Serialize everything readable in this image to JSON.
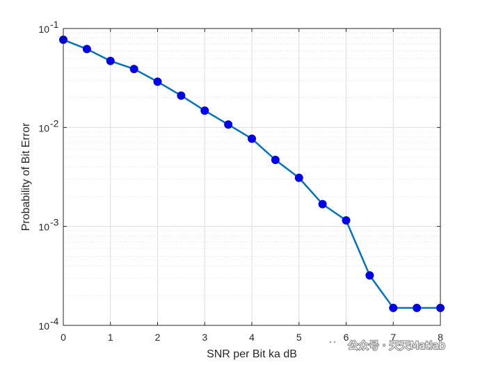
{
  "chart_data": {
    "type": "line",
    "xlabel": "SNR per Bit ka dB",
    "ylabel": "Probability of Bit Error",
    "xlim": [
      0,
      8
    ],
    "ylim": [
      0.0001,
      0.1
    ],
    "yscale": "log",
    "grid": true,
    "x_ticks": [
      "0",
      "1",
      "2",
      "3",
      "4",
      "5",
      "6",
      "7",
      "8"
    ],
    "y_ticks": [
      {
        "base": "10",
        "exp": "-4"
      },
      {
        "base": "10",
        "exp": "-3"
      },
      {
        "base": "10",
        "exp": "-2"
      },
      {
        "base": "10",
        "exp": "-1"
      }
    ],
    "series": [
      {
        "color": "#0072BD",
        "marker_color": "#0000E6",
        "x": [
          0,
          0.5,
          1,
          1.5,
          2,
          2.5,
          3,
          3.5,
          4,
          4.5,
          5,
          5.5,
          6,
          6.5,
          7,
          7.5,
          8
        ],
        "y": [
          0.077,
          0.062,
          0.047,
          0.039,
          0.029,
          0.021,
          0.0148,
          0.0107,
          0.0077,
          0.0047,
          0.0031,
          0.00168,
          0.00115,
          0.00032,
          0.00015,
          0.00015,
          0.00015
        ]
      }
    ]
  },
  "watermark": {
    "icon": "wechat-icon",
    "text": "公众号 · 天天Matlab"
  }
}
